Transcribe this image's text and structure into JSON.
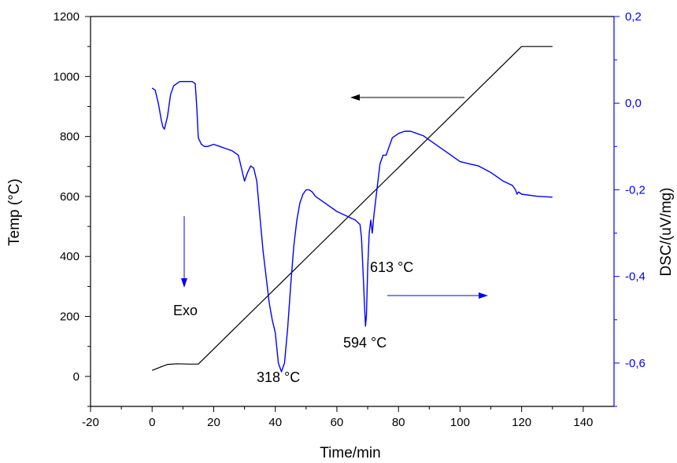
{
  "chart_data": {
    "type": "line",
    "xlabel": "Time/min",
    "ylabel_left": "Temp (°C)",
    "ylabel_right": "DSC/(uV/mg)",
    "xlim": [
      -20,
      150
    ],
    "ylim_left": [
      -100,
      1200
    ],
    "ylim_right": [
      -0.7,
      0.2
    ],
    "x_ticks": [
      -20,
      0,
      20,
      40,
      60,
      80,
      100,
      120,
      140
    ],
    "y_left_ticks": [
      0,
      200,
      400,
      600,
      800,
      1000,
      1200
    ],
    "y_right_ticks": [
      -0.6,
      -0.4,
      -0.2,
      0.0,
      0.2
    ],
    "y_right_tick_labels": [
      "-0,6",
      "-0,4",
      "-0,2",
      "0,0",
      "0,2"
    ],
    "grid": false,
    "colors": {
      "temp": "#000000",
      "dsc": "#0000ff"
    },
    "series": [
      {
        "axis": "left",
        "x": [
          0,
          3,
          5,
          8,
          12,
          15,
          120,
          130
        ],
        "y": [
          20,
          32,
          40,
          42,
          41,
          41,
          1100,
          1100
        ]
      },
      {
        "axis": "right",
        "x": [
          0,
          1,
          2,
          3,
          3.5,
          4,
          5,
          6,
          7,
          8,
          9,
          11,
          13,
          14,
          14.5,
          15,
          16,
          17,
          18,
          20,
          22,
          24,
          26,
          28,
          29,
          30,
          31,
          32,
          33,
          34,
          35,
          36,
          37,
          38,
          39,
          40,
          41,
          42,
          43,
          44,
          45,
          46,
          47,
          48,
          49,
          50,
          51,
          52,
          53,
          55,
          57,
          60,
          63,
          66,
          67.5,
          68,
          68.5,
          69,
          69.3,
          69.6,
          70,
          70.5,
          71,
          71.5,
          72,
          73,
          74,
          75,
          76,
          77,
          78,
          80,
          82,
          84,
          86,
          88,
          90,
          95,
          100,
          103,
          106,
          110,
          114,
          117,
          118,
          118.5,
          119,
          120,
          125,
          130
        ],
        "y": [
          0.035,
          0.03,
          0.0,
          -0.04,
          -0.055,
          -0.06,
          -0.03,
          0.02,
          0.04,
          0.045,
          0.05,
          0.05,
          0.05,
          0.045,
          -0.01,
          -0.08,
          -0.095,
          -0.1,
          -0.1,
          -0.095,
          -0.1,
          -0.105,
          -0.11,
          -0.12,
          -0.15,
          -0.18,
          -0.16,
          -0.145,
          -0.15,
          -0.18,
          -0.26,
          -0.34,
          -0.4,
          -0.46,
          -0.5,
          -0.53,
          -0.6,
          -0.62,
          -0.6,
          -0.52,
          -0.42,
          -0.33,
          -0.27,
          -0.23,
          -0.21,
          -0.2,
          -0.2,
          -0.205,
          -0.215,
          -0.225,
          -0.235,
          -0.25,
          -0.26,
          -0.27,
          -0.28,
          -0.31,
          -0.39,
          -0.47,
          -0.515,
          -0.49,
          -0.38,
          -0.3,
          -0.27,
          -0.3,
          -0.26,
          -0.2,
          -0.14,
          -0.12,
          -0.12,
          -0.1,
          -0.08,
          -0.07,
          -0.065,
          -0.065,
          -0.07,
          -0.075,
          -0.085,
          -0.11,
          -0.135,
          -0.14,
          -0.145,
          -0.16,
          -0.18,
          -0.19,
          -0.2,
          -0.21,
          -0.205,
          -0.21,
          -0.215,
          -0.217
        ]
      }
    ],
    "annotations": {
      "exo": "Exo",
      "peak1": "318 °C",
      "peak2": "594 °C",
      "peak3": "613 °C"
    }
  }
}
